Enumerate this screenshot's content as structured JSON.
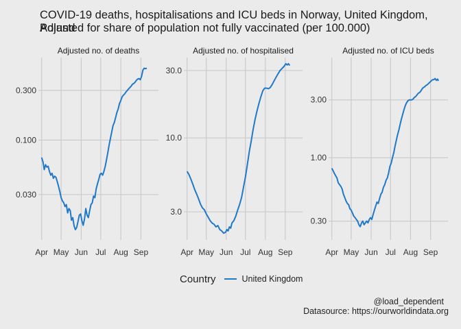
{
  "title": "COVID-19 deaths, hospitalisations and ICU beds in Norway, United Kingdom, Poland",
  "subtitle": "Adjusted for share of population not fully vaccinated (per 100.000)",
  "legend": {
    "title": "Country",
    "entries": [
      "United Kingdom"
    ]
  },
  "caption": {
    "handle": "@load_dependent",
    "source": "Datasource: https://ourworldindata.org"
  },
  "colors": {
    "line": "#1f78c8",
    "background": "#ebebeb",
    "grid": "#cbcbcb"
  },
  "chart_data": [
    {
      "type": "line",
      "title": "Adjusted no. of deaths",
      "scale": "log10",
      "ylim": [
        0.011,
        0.62
      ],
      "yticks": [
        0.03,
        0.1,
        0.3
      ],
      "ytick_labels": [
        "0.030",
        "0.100",
        "0.300"
      ],
      "xlim": [
        -5,
        180
      ],
      "xticks": [
        0,
        30,
        61,
        91,
        122,
        153
      ],
      "xtick_labels": [
        "Apr",
        "May",
        "Jun",
        "Jul",
        "Aug",
        "Sep"
      ],
      "x_unit": "days since 1 Apr",
      "series": [
        {
          "name": "United Kingdom",
          "points": [
            [
              0,
              0.068
            ],
            [
              2,
              0.062
            ],
            [
              4,
              0.052
            ],
            [
              6,
              0.058
            ],
            [
              8,
              0.055
            ],
            [
              10,
              0.056
            ],
            [
              12,
              0.05
            ],
            [
              14,
              0.046
            ],
            [
              16,
              0.048
            ],
            [
              18,
              0.043
            ],
            [
              20,
              0.045
            ],
            [
              22,
              0.044
            ],
            [
              24,
              0.04
            ],
            [
              26,
              0.036
            ],
            [
              28,
              0.032
            ],
            [
              30,
              0.028
            ],
            [
              32,
              0.026
            ],
            [
              34,
              0.025
            ],
            [
              36,
              0.023
            ],
            [
              38,
              0.024
            ],
            [
              40,
              0.02
            ],
            [
              42,
              0.022
            ],
            [
              44,
              0.021
            ],
            [
              46,
              0.017
            ],
            [
              48,
              0.018
            ],
            [
              50,
              0.015
            ],
            [
              52,
              0.0138
            ],
            [
              54,
              0.0145
            ],
            [
              56,
              0.0165
            ],
            [
              58,
              0.019
            ],
            [
              60,
              0.0195
            ],
            [
              62,
              0.0168
            ],
            [
              64,
              0.0152
            ],
            [
              66,
              0.0175
            ],
            [
              68,
              0.022
            ],
            [
              70,
              0.019
            ],
            [
              72,
              0.018
            ],
            [
              74,
              0.021
            ],
            [
              76,
              0.024
            ],
            [
              78,
              0.025
            ],
            [
              80,
              0.029
            ],
            [
              82,
              0.028
            ],
            [
              84,
              0.034
            ],
            [
              86,
              0.038
            ],
            [
              88,
              0.042
            ],
            [
              90,
              0.047
            ],
            [
              92,
              0.048
            ],
            [
              94,
              0.046
            ],
            [
              96,
              0.05
            ],
            [
              98,
              0.056
            ],
            [
              100,
              0.065
            ],
            [
              102,
              0.076
            ],
            [
              104,
              0.09
            ],
            [
              106,
              0.104
            ],
            [
              108,
              0.12
            ],
            [
              110,
              0.138
            ],
            [
              112,
              0.148
            ],
            [
              114,
              0.165
            ],
            [
              116,
              0.185
            ],
            [
              118,
              0.2
            ],
            [
              120,
              0.225
            ],
            [
              122,
              0.24
            ],
            [
              124,
              0.26
            ],
            [
              126,
              0.27
            ],
            [
              128,
              0.278
            ],
            [
              130,
              0.29
            ],
            [
              132,
              0.3
            ],
            [
              134,
              0.31
            ],
            [
              136,
              0.32
            ],
            [
              138,
              0.33
            ],
            [
              140,
              0.345
            ],
            [
              142,
              0.35
            ],
            [
              144,
              0.36
            ],
            [
              146,
              0.375
            ],
            [
              148,
              0.385
            ],
            [
              150,
              0.39
            ],
            [
              152,
              0.38
            ],
            [
              154,
              0.41
            ],
            [
              156,
              0.47
            ],
            [
              158,
              0.49
            ],
            [
              160,
              0.485
            ],
            [
              162,
              0.49
            ]
          ]
        }
      ]
    },
    {
      "type": "line",
      "title": "Adjusted no. of hospitalised",
      "scale": "log10",
      "ylim": [
        1.9,
        37
      ],
      "yticks": [
        3,
        10,
        30
      ],
      "ytick_labels": [
        "3.0",
        "10.0",
        "30.0"
      ],
      "xlim": [
        -5,
        180
      ],
      "xticks": [
        0,
        30,
        61,
        91,
        122,
        153
      ],
      "xtick_labels": [
        "Apr",
        "May",
        "Jun",
        "Jul",
        "Aug",
        "Sep"
      ],
      "x_unit": "days since 1 Apr",
      "series": [
        {
          "name": "United Kingdom",
          "points": [
            [
              0,
              5.8
            ],
            [
              3,
              5.5
            ],
            [
              6,
              5.1
            ],
            [
              9,
              4.7
            ],
            [
              12,
              4.3
            ],
            [
              15,
              4.0
            ],
            [
              18,
              3.7
            ],
            [
              21,
              3.4
            ],
            [
              24,
              3.2
            ],
            [
              27,
              3.1
            ],
            [
              30,
              2.9
            ],
            [
              33,
              2.75
            ],
            [
              36,
              2.6
            ],
            [
              39,
              2.5
            ],
            [
              42,
              2.45
            ],
            [
              45,
              2.35
            ],
            [
              48,
              2.4
            ],
            [
              51,
              2.25
            ],
            [
              54,
              2.2
            ],
            [
              57,
              2.12
            ],
            [
              60,
              2.15
            ],
            [
              62,
              2.25
            ],
            [
              64,
              2.2
            ],
            [
              66,
              2.35
            ],
            [
              68,
              2.3
            ],
            [
              70,
              2.5
            ],
            [
              73,
              2.6
            ],
            [
              76,
              2.8
            ],
            [
              79,
              3.1
            ],
            [
              82,
              3.4
            ],
            [
              85,
              3.8
            ],
            [
              88,
              4.5
            ],
            [
              91,
              5.3
            ],
            [
              94,
              6.5
            ],
            [
              97,
              8.0
            ],
            [
              100,
              9.5
            ],
            [
              103,
              11.5
            ],
            [
              106,
              13.5
            ],
            [
              109,
              15.5
            ],
            [
              112,
              17.5
            ],
            [
              115,
              19.5
            ],
            [
              118,
              21.5
            ],
            [
              121,
              22.5
            ],
            [
              124,
              22.5
            ],
            [
              127,
              22.3
            ],
            [
              130,
              22.8
            ],
            [
              133,
              24.0
            ],
            [
              136,
              25.5
            ],
            [
              139,
              27.0
            ],
            [
              142,
              28.5
            ],
            [
              145,
              30.0
            ],
            [
              148,
              31.0
            ],
            [
              151,
              32.0
            ],
            [
              154,
              33.5
            ],
            [
              156,
              32.8
            ],
            [
              158,
              33.5
            ],
            [
              160,
              32.5
            ]
          ]
        }
      ]
    },
    {
      "type": "line",
      "title": "Adjusted no. of ICU beds",
      "scale": "log10",
      "ylim": [
        0.21,
        6.7
      ],
      "yticks": [
        0.3,
        1,
        3
      ],
      "ytick_labels": [
        "0.30",
        "1.00",
        "3.00"
      ],
      "xlim": [
        -5,
        180
      ],
      "xticks": [
        0,
        30,
        61,
        91,
        122,
        153
      ],
      "xtick_labels": [
        "Apr",
        "May",
        "Jun",
        "Jul",
        "Aug",
        "Sep"
      ],
      "x_unit": "days since 1 Apr",
      "series": [
        {
          "name": "United Kingdom",
          "points": [
            [
              0,
              0.82
            ],
            [
              2,
              0.78
            ],
            [
              4,
              0.74
            ],
            [
              6,
              0.71
            ],
            [
              8,
              0.68
            ],
            [
              10,
              0.62
            ],
            [
              12,
              0.6
            ],
            [
              14,
              0.58
            ],
            [
              16,
              0.55
            ],
            [
              18,
              0.5
            ],
            [
              20,
              0.47
            ],
            [
              22,
              0.44
            ],
            [
              24,
              0.42
            ],
            [
              26,
              0.41
            ],
            [
              28,
              0.38
            ],
            [
              30,
              0.37
            ],
            [
              32,
              0.35
            ],
            [
              34,
              0.33
            ],
            [
              36,
              0.32
            ],
            [
              38,
              0.31
            ],
            [
              40,
              0.3
            ],
            [
              42,
              0.28
            ],
            [
              44,
              0.27
            ],
            [
              46,
              0.29
            ],
            [
              48,
              0.3
            ],
            [
              50,
              0.28
            ],
            [
              52,
              0.29
            ],
            [
              54,
              0.3
            ],
            [
              56,
              0.29
            ],
            [
              58,
              0.31
            ],
            [
              60,
              0.32
            ],
            [
              62,
              0.31
            ],
            [
              64,
              0.34
            ],
            [
              66,
              0.37
            ],
            [
              68,
              0.4
            ],
            [
              70,
              0.43
            ],
            [
              72,
              0.42
            ],
            [
              74,
              0.46
            ],
            [
              76,
              0.5
            ],
            [
              78,
              0.52
            ],
            [
              80,
              0.57
            ],
            [
              82,
              0.6
            ],
            [
              84,
              0.65
            ],
            [
              86,
              0.68
            ],
            [
              88,
              0.75
            ],
            [
              90,
              0.85
            ],
            [
              92,
              0.9
            ],
            [
              94,
              1.0
            ],
            [
              96,
              1.1
            ],
            [
              98,
              1.25
            ],
            [
              100,
              1.4
            ],
            [
              102,
              1.55
            ],
            [
              104,
              1.7
            ],
            [
              106,
              1.9
            ],
            [
              108,
              2.1
            ],
            [
              110,
              2.3
            ],
            [
              112,
              2.5
            ],
            [
              114,
              2.7
            ],
            [
              116,
              2.85
            ],
            [
              118,
              2.95
            ],
            [
              120,
              3.0
            ],
            [
              122,
              3.0
            ],
            [
              124,
              3.0
            ],
            [
              126,
              3.05
            ],
            [
              128,
              3.15
            ],
            [
              130,
              3.2
            ],
            [
              132,
              3.3
            ],
            [
              134,
              3.4
            ],
            [
              136,
              3.45
            ],
            [
              138,
              3.55
            ],
            [
              140,
              3.7
            ],
            [
              142,
              3.8
            ],
            [
              144,
              3.85
            ],
            [
              146,
              3.95
            ],
            [
              148,
              4.0
            ],
            [
              150,
              4.1
            ],
            [
              152,
              4.2
            ],
            [
              154,
              4.3
            ],
            [
              156,
              4.4
            ],
            [
              158,
              4.4
            ],
            [
              160,
              4.5
            ],
            [
              162,
              4.35
            ],
            [
              164,
              4.45
            ],
            [
              165,
              4.3
            ]
          ]
        }
      ]
    }
  ]
}
